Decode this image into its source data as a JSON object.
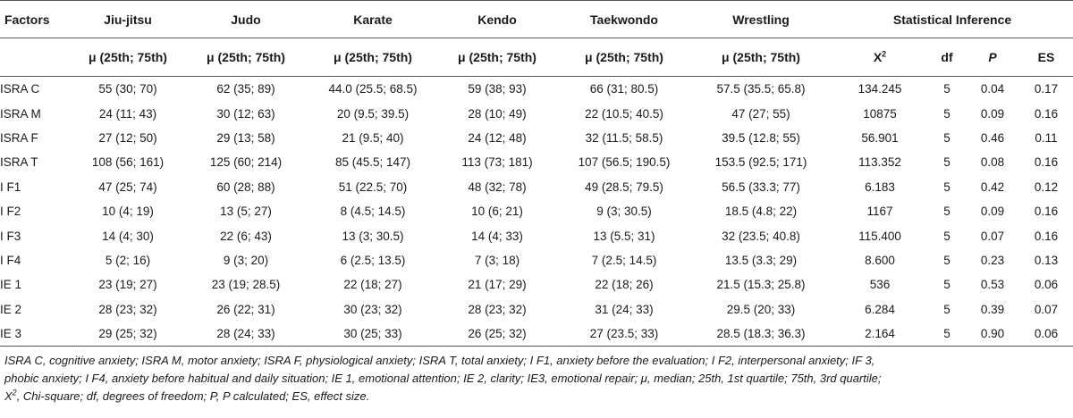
{
  "table": {
    "header": {
      "factors": "Factors",
      "groups": [
        "Jiu-jitsu",
        "Judo",
        "Karate",
        "Kendo",
        "Taekwondo",
        "Wrestling"
      ],
      "inference": "Statistical Inference",
      "sub_group": "μ (25th; 75th)",
      "sub_x": "X",
      "sub_x_sup": "2",
      "sub_df": "df",
      "sub_p": "P",
      "sub_es": "ES"
    },
    "rows": [
      {
        "factor": "ISRA C",
        "cells": [
          "55 (30; 70)",
          "62 (35; 89)",
          "44.0 (25.5; 68.5)",
          "59 (38; 93)",
          "66 (31; 80.5)",
          "57.5 (35.5; 65.8)"
        ],
        "x2": "134.245",
        "df": "5",
        "p": "0.04",
        "es": "0.17"
      },
      {
        "factor": "ISRA M",
        "cells": [
          "24 (11; 43)",
          "30 (12; 63)",
          "20 (9.5; 39.5)",
          "28 (10; 49)",
          "22 (10.5; 40.5)",
          "47 (27; 55)"
        ],
        "x2": "10875",
        "df": "5",
        "p": "0.09",
        "es": "0.16"
      },
      {
        "factor": "ISRA F",
        "cells": [
          "27 (12; 50)",
          "29 (13; 58)",
          "21 (9.5; 40)",
          "24 (12; 48)",
          "32 (11.5; 58.5)",
          "39.5 (12.8; 55)"
        ],
        "x2": "56.901",
        "df": "5",
        "p": "0.46",
        "es": "0.11"
      },
      {
        "factor": "ISRA T",
        "cells": [
          "108 (56; 161)",
          "125 (60; 214)",
          "85 (45.5; 147)",
          "113 (73; 181)",
          "107 (56.5; 190.5)",
          "153.5 (92.5; 171)"
        ],
        "x2": "113.352",
        "df": "5",
        "p": "0.08",
        "es": "0.16"
      },
      {
        "factor": "I F1",
        "cells": [
          "47 (25; 74)",
          "60 (28; 88)",
          "51 (22.5; 70)",
          "48 (32; 78)",
          "49 (28.5; 79.5)",
          "56.5 (33.3; 77)"
        ],
        "x2": "6.183",
        "df": "5",
        "p": "0.42",
        "es": "0.12"
      },
      {
        "factor": "I F2",
        "cells": [
          "10 (4; 19)",
          "13 (5; 27)",
          "8 (4.5; 14.5)",
          "10 (6; 21)",
          "9 (3; 30.5)",
          "18.5 (4.8; 22)"
        ],
        "x2": "1167",
        "df": "5",
        "p": "0.09",
        "es": "0.16"
      },
      {
        "factor": "I F3",
        "cells": [
          "14 (4; 30)",
          "22 (6; 43)",
          "13 (3; 30.5)",
          "14 (4; 33)",
          "13 (5.5; 31)",
          "32 (23.5; 40.8)"
        ],
        "x2": "115.400",
        "df": "5",
        "p": "0.07",
        "es": "0.16"
      },
      {
        "factor": "I F4",
        "cells": [
          "5 (2; 16)",
          "9 (3; 20)",
          "6 (2.5; 13.5)",
          "7 (3; 18)",
          "7 (2.5; 14.5)",
          "13.5 (3.3; 29)"
        ],
        "x2": "8.600",
        "df": "5",
        "p": "0.23",
        "es": "0.13"
      },
      {
        "factor": "IE 1",
        "cells": [
          "23 (19; 27)",
          "23 (19; 28.5)",
          "22 (18; 27)",
          "21 (17; 29)",
          "22 (18; 26)",
          "21.5 (15.3; 25.8)"
        ],
        "x2": "536",
        "df": "5",
        "p": "0.53",
        "es": "0.06"
      },
      {
        "factor": "IE 2",
        "cells": [
          "28 (23; 32)",
          "26 (22; 31)",
          "30 (23; 32)",
          "28 (23; 32)",
          "31 (24; 33)",
          "29.5 (20; 33)"
        ],
        "x2": "6.284",
        "df": "5",
        "p": "0.39",
        "es": "0.07"
      },
      {
        "factor": "IE 3",
        "cells": [
          "29 (25; 32)",
          "28 (24; 33)",
          "30 (25; 33)",
          "26 (25; 32)",
          "27 (23.5; 33)",
          "28.5 (18.3; 36.3)"
        ],
        "x2": "2.164",
        "df": "5",
        "p": "0.90",
        "es": "0.06"
      }
    ]
  },
  "footnote": {
    "line1": "ISRA C, cognitive anxiety; ISRA M, motor anxiety; ISRA F, physiological anxiety; ISRA T, total anxiety; I F1, anxiety before the evaluation; I F2, interpersonal anxiety; IF 3,",
    "line2": "phobic anxiety; I F4, anxiety before habitual and daily situation; IE 1, emotional attention; IE 2, clarity; IE3, emotional repair; μ, median; 25th, 1st quartile; 75th, 3rd quartile;",
    "line3_x": "X",
    "line3_sup": "2",
    "line3_rest": ", Chi-square; df, degrees of freedom; P, P calculated; ES, effect size."
  }
}
